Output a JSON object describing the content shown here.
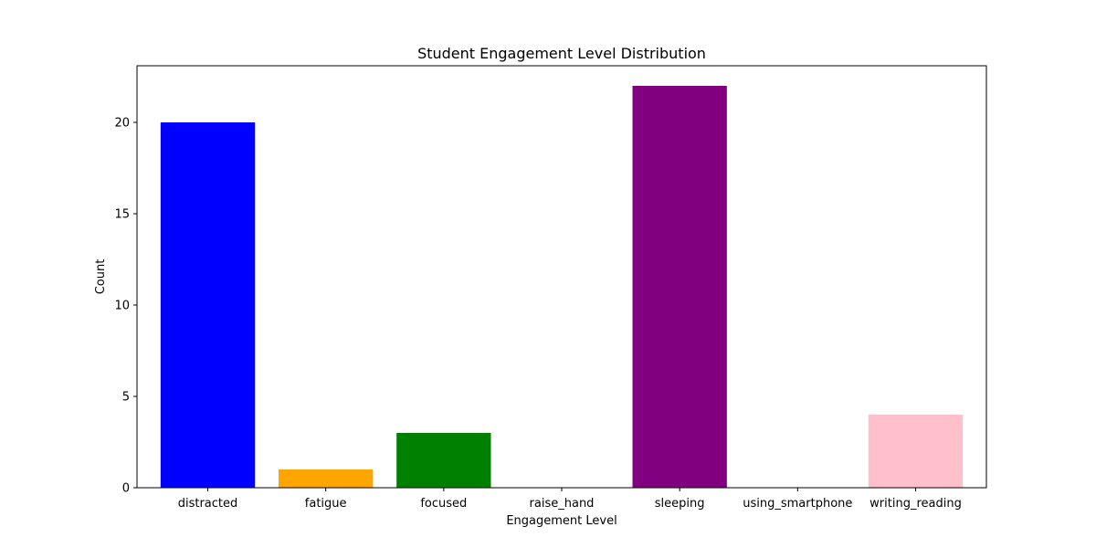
{
  "chart_data": {
    "type": "bar",
    "title": "Student Engagement Level Distribution",
    "xlabel": "Engagement Level",
    "ylabel": "Count",
    "categories": [
      "distracted",
      "fatigue",
      "focused",
      "raise_hand",
      "sleeping",
      "using_smartphone",
      "writing_reading"
    ],
    "values": [
      20,
      1,
      3,
      0,
      22,
      0,
      4
    ],
    "colors": [
      "#0000ff",
      "#ffa500",
      "#008000",
      "#ff0000",
      "#800080",
      "#a52a2a",
      "#ffc0cb"
    ],
    "ylim": [
      0,
      23.1
    ],
    "yticks": [
      0,
      5,
      10,
      15,
      20
    ],
    "grid": false,
    "legend": "none"
  }
}
